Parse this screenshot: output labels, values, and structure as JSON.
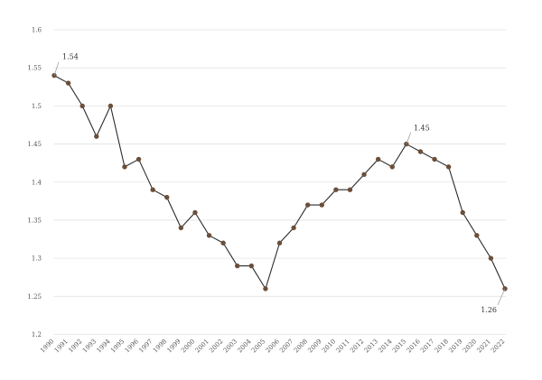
{
  "chart_data": {
    "type": "line",
    "title": "",
    "xlabel": "",
    "ylabel": "",
    "x": [
      "1990",
      "1991",
      "1992",
      "1993",
      "1994",
      "1995",
      "1996",
      "1997",
      "1998",
      "1999",
      "2000",
      "2001",
      "2002",
      "2003",
      "2004",
      "2005",
      "2006",
      "2007",
      "2008",
      "2009",
      "2010",
      "2011",
      "2012",
      "2013",
      "2014",
      "2015",
      "2016",
      "2017",
      "2018",
      "2019",
      "2020",
      "2021",
      "2022"
    ],
    "series": [
      {
        "values": [
          1.54,
          1.53,
          1.5,
          1.46,
          1.5,
          1.42,
          1.43,
          1.39,
          1.38,
          1.34,
          1.36,
          1.33,
          1.32,
          1.29,
          1.29,
          1.26,
          1.32,
          1.34,
          1.37,
          1.37,
          1.39,
          1.39,
          1.41,
          1.43,
          1.42,
          1.45,
          1.44,
          1.43,
          1.42,
          1.36,
          1.33,
          1.3,
          1.26
        ]
      }
    ],
    "ylim": [
      1.2,
      1.6
    ],
    "yticks": [
      "1.2",
      "1.25",
      "1.3",
      "1.35",
      "1.4",
      "1.45",
      "1.5",
      "1.55",
      "1.6"
    ],
    "grid": true,
    "legend": "none",
    "annotations": [
      {
        "x": "1990",
        "label": "1.54"
      },
      {
        "x": "2015",
        "label": "1.45"
      },
      {
        "x": "2022",
        "label": "1.26"
      }
    ],
    "colors": {
      "line": "#2b2b2b",
      "marker": "#6b4f3a",
      "grid": "#e3e3e3",
      "leader": "#9a9a9a"
    }
  }
}
